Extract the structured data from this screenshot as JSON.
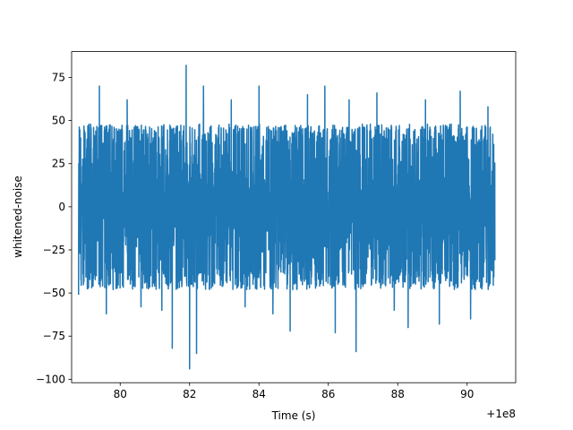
{
  "chart_data": {
    "type": "line",
    "title": "",
    "xlabel": "Time (s)",
    "ylabel": "whitened-noise",
    "x_offset_label": "+1e8",
    "xlim": [
      78.6,
      91.4
    ],
    "ylim": [
      -102,
      90
    ],
    "xticks": [
      80,
      82,
      84,
      86,
      88,
      90
    ],
    "xtick_labels": [
      "80",
      "82",
      "84",
      "86",
      "88",
      "90"
    ],
    "yticks": [
      -100,
      -75,
      -50,
      -25,
      0,
      25,
      50,
      75
    ],
    "ytick_labels": [
      "−100",
      "−75",
      "−50",
      "−25",
      "0",
      "25",
      "50",
      "75"
    ],
    "grid": false,
    "series": [
      {
        "color": "#1f77b4",
        "x_start": 78.8,
        "x_end": 90.8,
        "y_min": -94,
        "y_max": 82,
        "typical_abs_max": 48,
        "notable_points": [
          {
            "x": 78.8,
            "y": -51
          },
          {
            "x": 79.4,
            "y": 70
          },
          {
            "x": 79.6,
            "y": -62
          },
          {
            "x": 80.2,
            "y": 62
          },
          {
            "x": 80.6,
            "y": -58
          },
          {
            "x": 81.2,
            "y": -60
          },
          {
            "x": 81.5,
            "y": -82
          },
          {
            "x": 81.9,
            "y": 82
          },
          {
            "x": 82.0,
            "y": -94
          },
          {
            "x": 82.2,
            "y": -85
          },
          {
            "x": 82.4,
            "y": 70
          },
          {
            "x": 83.2,
            "y": 62
          },
          {
            "x": 83.6,
            "y": -58
          },
          {
            "x": 84.0,
            "y": 70
          },
          {
            "x": 84.4,
            "y": -62
          },
          {
            "x": 84.9,
            "y": -72
          },
          {
            "x": 85.4,
            "y": 65
          },
          {
            "x": 85.9,
            "y": 70
          },
          {
            "x": 86.2,
            "y": -73
          },
          {
            "x": 86.6,
            "y": 62
          },
          {
            "x": 86.8,
            "y": -84
          },
          {
            "x": 87.4,
            "y": 66
          },
          {
            "x": 87.9,
            "y": -60
          },
          {
            "x": 88.3,
            "y": -70
          },
          {
            "x": 88.8,
            "y": 62
          },
          {
            "x": 89.2,
            "y": -68
          },
          {
            "x": 89.8,
            "y": 67
          },
          {
            "x": 90.1,
            "y": -65
          },
          {
            "x": 90.6,
            "y": 58
          },
          {
            "x": 90.8,
            "y": -31
          }
        ]
      }
    ]
  }
}
